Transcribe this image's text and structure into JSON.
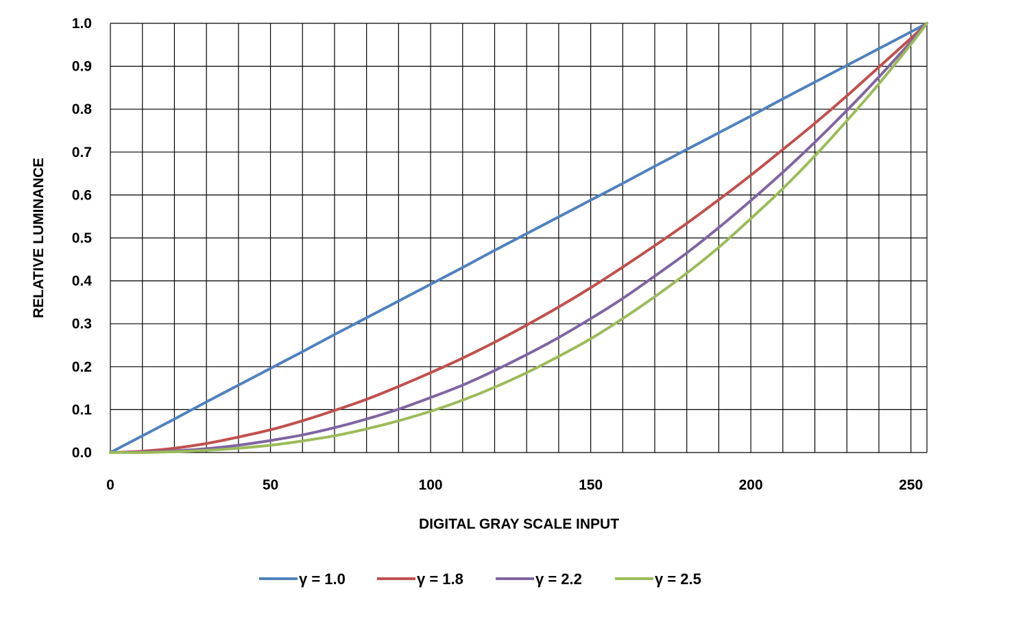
{
  "chart_data": {
    "type": "line",
    "title": "",
    "xlabel": "DIGITAL GRAY SCALE INPUT",
    "ylabel": "RELATIVE LUMINANCE",
    "xlim": [
      0,
      255
    ],
    "ylim": [
      0,
      1
    ],
    "x_ticks": [
      0,
      50,
      100,
      150,
      200,
      250
    ],
    "x_tick_labels": [
      "0",
      "50",
      "100",
      "150",
      "200",
      "250"
    ],
    "y_ticks": [
      0,
      0.1,
      0.2,
      0.3,
      0.4,
      0.5,
      0.6,
      0.7,
      0.8,
      0.9,
      1.0
    ],
    "y_tick_labels": [
      "0.0",
      "0.1",
      "0.2",
      "0.3",
      "0.4",
      "0.5",
      "0.6",
      "0.7",
      "0.8",
      "0.9",
      "1.0"
    ],
    "grid": true,
    "x_gridlines": [
      0,
      10,
      20,
      30,
      40,
      50,
      60,
      70,
      80,
      90,
      100,
      110,
      120,
      130,
      140,
      150,
      160,
      170,
      180,
      190,
      200,
      210,
      220,
      230,
      240,
      250,
      255
    ],
    "legend_position": "bottom",
    "x": [
      0,
      10,
      20,
      30,
      40,
      50,
      60,
      70,
      80,
      90,
      100,
      110,
      120,
      130,
      140,
      150,
      160,
      170,
      180,
      190,
      200,
      210,
      220,
      230,
      240,
      250,
      255
    ],
    "series": [
      {
        "name": "γ = 1.0",
        "color": "#4F81BD",
        "values": [
          0.0,
          0.039,
          0.078,
          0.118,
          0.157,
          0.196,
          0.235,
          0.275,
          0.314,
          0.353,
          0.392,
          0.431,
          0.471,
          0.51,
          0.549,
          0.588,
          0.627,
          0.667,
          0.706,
          0.745,
          0.784,
          0.824,
          0.863,
          0.902,
          0.941,
          0.98,
          1.0
        ]
      },
      {
        "name": "γ = 1.8",
        "color": "#C0504D",
        "values": [
          0.0,
          0.003,
          0.01,
          0.021,
          0.036,
          0.053,
          0.074,
          0.098,
          0.124,
          0.154,
          0.186,
          0.22,
          0.257,
          0.297,
          0.339,
          0.384,
          0.432,
          0.482,
          0.534,
          0.589,
          0.646,
          0.706,
          0.767,
          0.831,
          0.898,
          0.965,
          1.0
        ]
      },
      {
        "name": "γ = 2.2",
        "color": "#8064A2",
        "values": [
          0.0,
          0.001,
          0.004,
          0.009,
          0.017,
          0.028,
          0.041,
          0.058,
          0.078,
          0.101,
          0.128,
          0.157,
          0.191,
          0.228,
          0.268,
          0.312,
          0.359,
          0.411,
          0.465,
          0.524,
          0.587,
          0.653,
          0.723,
          0.797,
          0.875,
          0.957,
          1.0
        ]
      },
      {
        "name": "γ = 2.5",
        "color": "#9BBB59",
        "values": [
          0.0,
          0.0,
          0.002,
          0.005,
          0.01,
          0.017,
          0.027,
          0.039,
          0.055,
          0.074,
          0.096,
          0.122,
          0.152,
          0.186,
          0.224,
          0.265,
          0.312,
          0.363,
          0.418,
          0.478,
          0.545,
          0.615,
          0.691,
          0.773,
          0.859,
          0.951,
          1.0
        ]
      }
    ]
  }
}
